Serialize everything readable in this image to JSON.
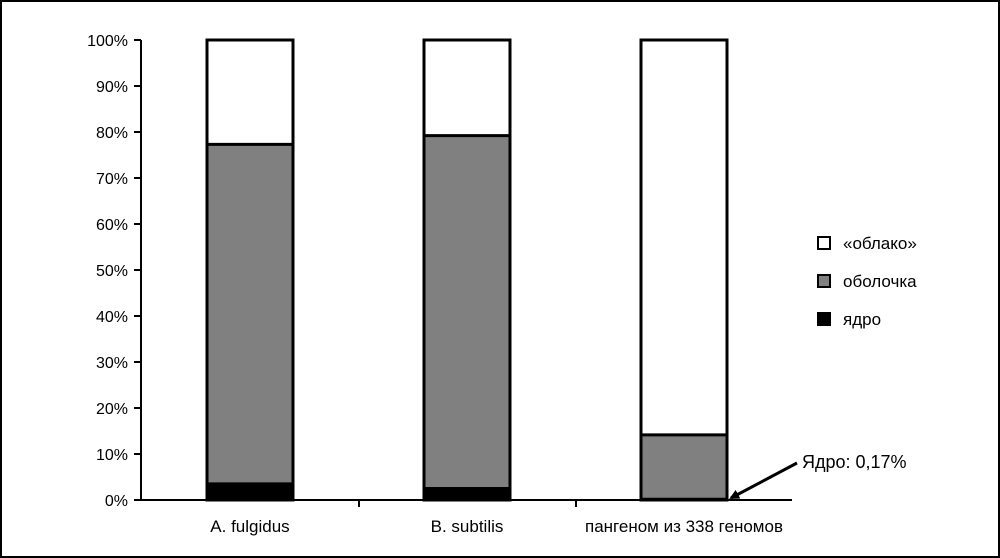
{
  "chart_data": {
    "type": "bar",
    "stacked": true,
    "normalized_percent": true,
    "categories": [
      "A. fulgidus",
      "B. subtilis",
      "пангеном из 338 геномов"
    ],
    "series": [
      {
        "name": "ядро",
        "color": "#000000",
        "values": [
          3.5,
          2.5,
          0.17
        ]
      },
      {
        "name": "оболочка",
        "color": "#808080",
        "values": [
          73.8,
          76.7,
          14.0
        ]
      },
      {
        "name": "«облако»",
        "color": "#ffffff",
        "values": [
          22.7,
          20.8,
          85.83
        ]
      }
    ],
    "yticks": [
      "0%",
      "10%",
      "20%",
      "30%",
      "40%",
      "50%",
      "60%",
      "70%",
      "80%",
      "90%",
      "100%"
    ],
    "ylim": [
      0,
      100
    ],
    "legend_position": "right",
    "legend_order": [
      "«облако»",
      "оболочка",
      "ядро"
    ],
    "annotation": {
      "text": "Ядро: 0,17%",
      "points_to_category": "пангеном из 338 геномов",
      "points_to_value": 0
    }
  }
}
